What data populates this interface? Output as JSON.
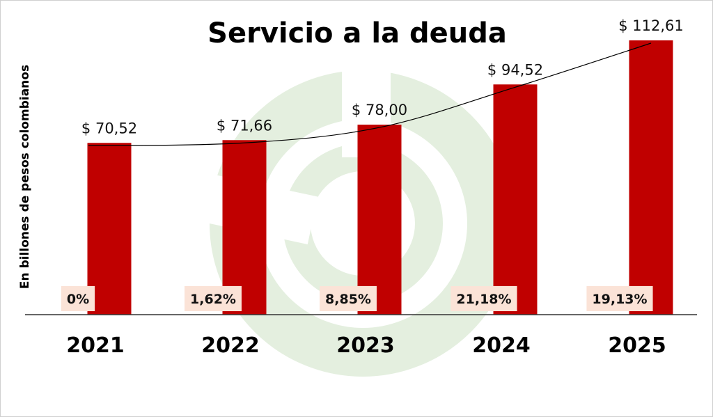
{
  "colors": {
    "bar": "#c00000",
    "label_bg": "#fbe3d7",
    "watermark": "#e4efdf",
    "baseline": "#333333",
    "trend": "#000000"
  },
  "chart_data": {
    "type": "bar",
    "title": "Servicio a la deuda",
    "xlabel": "",
    "ylabel": "En billones de pesos colombianos",
    "categories": [
      "2021",
      "2022",
      "2023",
      "2024",
      "2025"
    ],
    "values": [
      70.52,
      71.66,
      78.0,
      94.52,
      112.61
    ],
    "value_labels": [
      "$ 70,52",
      "$ 71,66",
      "$ 78,00",
      "$ 94,52",
      "$ 112,61"
    ],
    "growth_labels": [
      "0%",
      "1,62%",
      "8,85%",
      "21,18%",
      "19,13%"
    ],
    "ylim": [
      0,
      112.61
    ],
    "trendline": true,
    "grid": false,
    "legend": "none"
  }
}
